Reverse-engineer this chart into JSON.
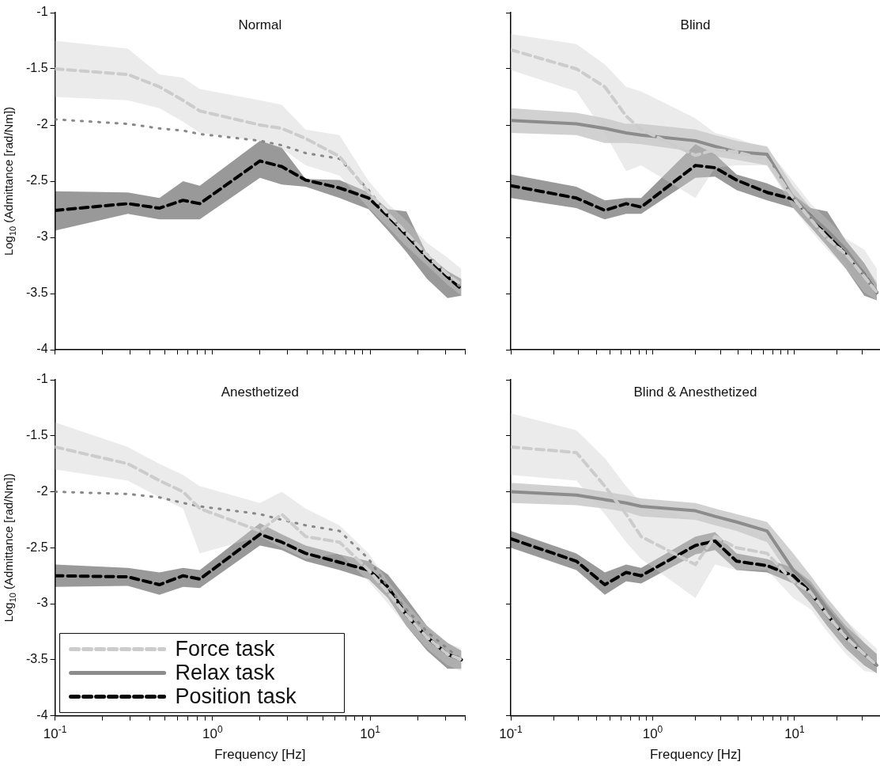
{
  "chart_data": [
    {
      "type": "line",
      "title": "Normal",
      "ylabel": "Log$_{10}$ (Admittance [rad/Nm])",
      "log": "x",
      "tick_labels": "y",
      "legend": false,
      "x": [
        0.1,
        0.29,
        0.46,
        0.65,
        0.83,
        2,
        2.75,
        3.9,
        6.4,
        9.8,
        13,
        17,
        23,
        31,
        38
      ],
      "xlim": [
        0.1,
        40
      ],
      "ylim": [
        -4,
        -1
      ],
      "xticks": [
        {
          "value": 0.1,
          "label": null
        },
        {
          "value": 0.2,
          "label": null
        },
        {
          "value": 0.3,
          "label": null
        },
        {
          "value": 0.4,
          "label": null
        },
        {
          "value": 0.5,
          "label": null
        },
        {
          "value": 0.6,
          "label": null
        },
        {
          "value": 0.7,
          "label": null
        },
        {
          "value": 0.8,
          "label": null
        },
        {
          "value": 0.9,
          "label": null
        },
        {
          "value": 1,
          "label": null
        },
        {
          "value": 2,
          "label": null
        },
        {
          "value": 3,
          "label": null
        },
        {
          "value": 4,
          "label": null
        },
        {
          "value": 5,
          "label": null
        },
        {
          "value": 6,
          "label": null
        },
        {
          "value": 7,
          "label": null
        },
        {
          "value": 8,
          "label": null
        },
        {
          "value": 9,
          "label": null
        },
        {
          "value": 10,
          "label": null
        },
        {
          "value": 20,
          "label": null
        },
        {
          "value": 30,
          "label": null
        },
        {
          "value": 40,
          "label": null
        }
      ],
      "yticks": [
        -4,
        -3.5,
        -3,
        -2.5,
        -2,
        -1.5,
        -1
      ],
      "series": [
        {
          "color": "#cccccc",
          "line_style": "dashed",
          "values": [
            -1.5,
            -1.55,
            -1.66,
            -1.78,
            -1.875,
            -2.0,
            -2.03,
            -2.12,
            -2.28,
            -2.6,
            -2.79,
            -2.96,
            -3.16,
            -3.33,
            -3.42
          ],
          "upper": [
            -1.25,
            -1.32,
            -1.55,
            -1.58,
            -1.68,
            -1.78,
            -1.82,
            -2.04,
            -2.09,
            -2.5,
            -2.7,
            -2.85,
            -3.05,
            -3.18,
            -3.28
          ],
          "lower": [
            -1.75,
            -1.78,
            -1.85,
            -1.97,
            -2.07,
            -2.14,
            -2.21,
            -2.36,
            -2.45,
            -2.74,
            -2.91,
            -3.08,
            -3.25,
            -3.42,
            -3.52
          ]
        },
        {
          "color": "#888888",
          "line_style": "dotted",
          "values": [
            -1.95,
            -1.99,
            -2.03,
            -2.05,
            -2.08,
            -2.14,
            -2.18,
            -2.25,
            -2.3,
            -2.58,
            -2.8,
            -2.97,
            -3.15,
            -3.33,
            -3.45
          ]
        },
        {
          "color": "#000000",
          "line_style": "dashed",
          "values": [
            -2.76,
            -2.7,
            -2.74,
            -2.67,
            -2.7,
            -2.32,
            -2.37,
            -2.49,
            -2.56,
            -2.65,
            -2.81,
            -2.98,
            -3.18,
            -3.35,
            -3.46
          ],
          "upper": [
            -2.59,
            -2.6,
            -2.65,
            -2.5,
            -2.54,
            -2.14,
            -2.2,
            -2.48,
            -2.49,
            -2.6,
            -2.75,
            -2.77,
            -3.15,
            -3.3,
            -3.37
          ],
          "lower": [
            -2.94,
            -2.79,
            -2.84,
            -2.84,
            -2.84,
            -2.47,
            -2.53,
            -2.55,
            -2.65,
            -2.75,
            -2.94,
            -3.13,
            -3.37,
            -3.54,
            -3.52
          ]
        }
      ]
    },
    {
      "type": "line",
      "title": "Blind",
      "log": "x",
      "tick_labels": false,
      "legend": false,
      "x": [
        0.1,
        0.29,
        0.46,
        0.65,
        0.83,
        2,
        2.75,
        3.9,
        6.4,
        9.8,
        13,
        17,
        23,
        31,
        38
      ],
      "xlim": [
        0.1,
        40
      ],
      "ylim": [
        -4,
        -1
      ],
      "xticks": [
        {
          "value": 0.1,
          "label": null
        },
        {
          "value": 0.2,
          "label": null
        },
        {
          "value": 0.3,
          "label": null
        },
        {
          "value": 0.4,
          "label": null
        },
        {
          "value": 0.5,
          "label": null
        },
        {
          "value": 0.6,
          "label": null
        },
        {
          "value": 0.7,
          "label": null
        },
        {
          "value": 0.8,
          "label": null
        },
        {
          "value": 0.9,
          "label": null
        },
        {
          "value": 1,
          "label": null
        },
        {
          "value": 2,
          "label": null
        },
        {
          "value": 3,
          "label": null
        },
        {
          "value": 4,
          "label": null
        },
        {
          "value": 5,
          "label": null
        },
        {
          "value": 6,
          "label": null
        },
        {
          "value": 7,
          "label": null
        },
        {
          "value": 8,
          "label": null
        },
        {
          "value": 9,
          "label": null
        },
        {
          "value": 10,
          "label": null
        },
        {
          "value": 20,
          "label": null
        },
        {
          "value": 30,
          "label": null
        },
        {
          "value": 40,
          "label": null
        }
      ],
      "yticks": [
        {
          "value": -4,
          "label": null
        },
        {
          "value": -3.5,
          "label": null
        },
        {
          "value": -3,
          "label": null
        },
        {
          "value": -2.5,
          "label": null
        },
        {
          "value": -2,
          "label": null
        },
        {
          "value": -1.5,
          "label": null
        },
        {
          "value": -1,
          "label": null
        }
      ],
      "series": [
        {
          "color": "#cccccc",
          "line_style": "dashed",
          "values": [
            -1.33,
            -1.5,
            -1.66,
            -1.92,
            -2.04,
            -2.27,
            -2.22,
            -2.24,
            -2.31,
            -2.65,
            -2.84,
            -3.01,
            -3.15,
            -3.35,
            -3.49
          ],
          "upper": [
            -1.19,
            -1.28,
            -1.46,
            -1.66,
            -1.7,
            -1.94,
            -2.07,
            -2.12,
            -2.21,
            -2.5,
            -2.7,
            -2.84,
            -3.01,
            -3.11,
            -3.28
          ],
          "lower": [
            -1.51,
            -1.7,
            -2.07,
            -2.41,
            -2.36,
            -2.65,
            -2.38,
            -2.36,
            -2.36,
            -2.74,
            -2.94,
            -3.11,
            -3.28,
            -3.49,
            -3.56
          ]
        },
        {
          "color": "#8c8c8c",
          "line_style": "solid",
          "values": [
            -1.96,
            -1.99,
            -2.03,
            -2.07,
            -2.09,
            -2.14,
            -2.19,
            -2.24,
            -2.26,
            -2.65,
            -2.81,
            -2.94,
            -3.11,
            -3.33,
            -3.49
          ],
          "upper": [
            -1.85,
            -1.89,
            -1.94,
            -1.99,
            -1.99,
            -2.04,
            -2.09,
            -2.14,
            -2.19,
            -2.55,
            -2.74,
            -2.84,
            -3.03,
            -3.23,
            -3.4
          ],
          "lower": [
            -2.07,
            -2.09,
            -2.16,
            -2.16,
            -2.17,
            -2.24,
            -2.28,
            -2.31,
            -2.36,
            -2.7,
            -2.89,
            -3.03,
            -3.23,
            -3.47,
            -3.56
          ]
        },
        {
          "color": "#000000",
          "line_style": "dashed",
          "values": [
            -2.54,
            -2.65,
            -2.76,
            -2.7,
            -2.73,
            -2.36,
            -2.38,
            -2.49,
            -2.6,
            -2.66,
            -2.81,
            -2.96,
            -3.13,
            -3.33,
            -3.49
          ],
          "upper": [
            -2.44,
            -2.55,
            -2.67,
            -2.65,
            -2.65,
            -2.17,
            -2.26,
            -2.44,
            -2.52,
            -2.62,
            -2.74,
            -2.77,
            -3.03,
            -3.23,
            -3.42
          ],
          "lower": [
            -2.65,
            -2.74,
            -2.84,
            -2.79,
            -2.79,
            -2.47,
            -2.46,
            -2.58,
            -2.67,
            -2.74,
            -2.91,
            -3.08,
            -3.28,
            -3.52,
            -3.56
          ]
        }
      ]
    },
    {
      "type": "line",
      "title": "Anesthetized",
      "xlabel": "Frequency [Hz]",
      "ylabel": "Log$_{10}$ (Admittance [rad/Nm])",
      "log": "x",
      "legend": "bottom left",
      "x": [
        0.1,
        0.29,
        0.46,
        0.65,
        0.83,
        2,
        2.75,
        3.9,
        6.4,
        9.8,
        13,
        17,
        23,
        31,
        38
      ],
      "xlim": [
        0.1,
        40
      ],
      "ylim": [
        -4,
        -1
      ],
      "xticks": [
        {
          "value": 0.1,
          "label": "10$^{-1}$"
        },
        {
          "value": 0.2,
          "label": null
        },
        {
          "value": 0.3,
          "label": null
        },
        {
          "value": 0.4,
          "label": null
        },
        {
          "value": 0.5,
          "label": null
        },
        {
          "value": 0.6,
          "label": null
        },
        {
          "value": 0.7,
          "label": null
        },
        {
          "value": 0.8,
          "label": null
        },
        {
          "value": 0.9,
          "label": null
        },
        {
          "value": 1,
          "label": "10$^{0}$"
        },
        {
          "value": 2,
          "label": null
        },
        {
          "value": 3,
          "label": null
        },
        {
          "value": 4,
          "label": null
        },
        {
          "value": 5,
          "label": null
        },
        {
          "value": 6,
          "label": null
        },
        {
          "value": 7,
          "label": null
        },
        {
          "value": 8,
          "label": null
        },
        {
          "value": 9,
          "label": null
        },
        {
          "value": 10,
          "label": "10$^{1}$"
        },
        {
          "value": 20,
          "label": null
        },
        {
          "value": 30,
          "label": null
        },
        {
          "value": 40,
          "label": null
        }
      ],
      "yticks": [
        -4,
        -3.5,
        -3,
        -2.5,
        -2,
        -1.5,
        -1
      ],
      "series": [
        {
          "name": "Force task",
          "color": "#cccccc",
          "line_style": "dashed",
          "values": [
            -1.6,
            -1.75,
            -1.9,
            -2.0,
            -2.15,
            -2.35,
            -2.2,
            -2.4,
            -2.45,
            -2.7,
            -2.9,
            -3.1,
            -3.3,
            -3.45,
            -3.5
          ],
          "upper": [
            -1.38,
            -1.6,
            -1.75,
            -1.85,
            -1.95,
            -2.1,
            -2.0,
            -2.15,
            -2.3,
            -2.55,
            -2.8,
            -3.0,
            -3.2,
            -3.35,
            -3.4
          ],
          "lower": [
            -1.8,
            -1.9,
            -2.05,
            -2.15,
            -2.55,
            -2.4,
            -2.5,
            -2.6,
            -2.55,
            -2.8,
            -3.0,
            -3.2,
            -3.4,
            -3.55,
            -3.6
          ]
        },
        {
          "name": "Relax task",
          "color": "#8c8c8c",
          "line_style": "solid",
          "values": [
            null,
            null,
            null,
            null,
            null,
            null,
            null,
            null,
            null,
            null,
            null,
            null,
            null,
            null,
            null
          ]
        },
        {
          "color": "#888888",
          "line_style": "dotted",
          "values": [
            -2.0,
            -2.02,
            -2.05,
            -2.1,
            -2.13,
            -2.2,
            -2.25,
            -2.3,
            -2.35,
            -2.6,
            -2.85,
            -3.05,
            -3.25,
            -3.4,
            -3.5
          ]
        },
        {
          "name": "Position task",
          "color": "#000000",
          "line_style": "dashed",
          "values": [
            -2.75,
            -2.76,
            -2.83,
            -2.75,
            -2.78,
            -2.38,
            -2.45,
            -2.55,
            -2.63,
            -2.7,
            -2.85,
            -3.1,
            -3.3,
            -3.45,
            -3.5
          ],
          "upper": [
            -2.65,
            -2.68,
            -2.72,
            -2.68,
            -2.7,
            -2.28,
            -2.38,
            -2.48,
            -2.56,
            -2.62,
            -2.74,
            -2.95,
            -3.2,
            -3.35,
            -3.42
          ],
          "lower": [
            -2.85,
            -2.84,
            -2.92,
            -2.85,
            -2.86,
            -2.48,
            -2.52,
            -2.62,
            -2.7,
            -2.78,
            -2.95,
            -3.2,
            -3.42,
            -3.58,
            -3.58
          ]
        }
      ]
    },
    {
      "type": "line",
      "title": "Blind & Anesthetized",
      "xlabel": "Frequency [Hz]",
      "log": "x",
      "tick_labels": "x",
      "legend": false,
      "x": [
        0.1,
        0.29,
        0.46,
        0.65,
        0.83,
        2,
        2.75,
        3.9,
        6.4,
        9.8,
        13,
        17,
        23,
        31,
        38
      ],
      "xlim": [
        0.1,
        40
      ],
      "ylim": [
        -4,
        -1
      ],
      "xticks": [
        {
          "value": 0.1,
          "label": "10$^{-1}$"
        },
        {
          "value": 0.2,
          "label": null
        },
        {
          "value": 0.3,
          "label": null
        },
        {
          "value": 0.4,
          "label": null
        },
        {
          "value": 0.5,
          "label": null
        },
        {
          "value": 0.6,
          "label": null
        },
        {
          "value": 0.7,
          "label": null
        },
        {
          "value": 0.8,
          "label": null
        },
        {
          "value": 0.9,
          "label": null
        },
        {
          "value": 1,
          "label": "10$^{0}$"
        },
        {
          "value": 2,
          "label": null
        },
        {
          "value": 3,
          "label": null
        },
        {
          "value": 4,
          "label": null
        },
        {
          "value": 5,
          "label": null
        },
        {
          "value": 6,
          "label": null
        },
        {
          "value": 7,
          "label": null
        },
        {
          "value": 8,
          "label": null
        },
        {
          "value": 9,
          "label": null
        },
        {
          "value": 10,
          "label": "10$^{1}$"
        },
        {
          "value": 20,
          "label": null
        },
        {
          "value": 30,
          "label": null
        },
        {
          "value": 40,
          "label": null
        }
      ],
      "yticks": [
        {
          "value": -4,
          "label": null
        },
        {
          "value": -3.5,
          "label": null
        },
        {
          "value": -3,
          "label": null
        },
        {
          "value": -2.5,
          "label": null
        },
        {
          "value": -2,
          "label": null
        },
        {
          "value": -1.5,
          "label": null
        },
        {
          "value": -1,
          "label": null
        }
      ],
      "series": [
        {
          "color": "#cccccc",
          "line_style": "dashed",
          "values": [
            -1.6,
            -1.65,
            -1.95,
            -2.2,
            -2.4,
            -2.65,
            -2.4,
            -2.5,
            -2.55,
            -2.8,
            -2.9,
            -3.1,
            -3.3,
            -3.45,
            -3.55
          ],
          "upper": [
            -1.3,
            -1.45,
            -1.7,
            -1.95,
            -2.1,
            -2.25,
            -2.15,
            -2.3,
            -2.4,
            -2.6,
            -2.75,
            -2.95,
            -3.15,
            -3.3,
            -3.4
          ],
          "lower": [
            -1.85,
            -1.9,
            -2.2,
            -2.45,
            -2.6,
            -2.95,
            -2.65,
            -2.7,
            -2.7,
            -2.95,
            -3.05,
            -3.25,
            -3.45,
            -3.6,
            -3.62
          ]
        },
        {
          "color": "#8c8c8c",
          "line_style": "solid",
          "values": [
            -2.0,
            -2.03,
            -2.07,
            -2.1,
            -2.13,
            -2.17,
            -2.22,
            -2.27,
            -2.35,
            -2.7,
            -2.85,
            -3.05,
            -3.25,
            -3.45,
            -3.55
          ],
          "upper": [
            -1.92,
            -1.96,
            -2.0,
            -2.03,
            -2.06,
            -2.1,
            -2.15,
            -2.2,
            -2.27,
            -2.55,
            -2.75,
            -2.95,
            -3.15,
            -3.35,
            -3.45
          ],
          "lower": [
            -2.1,
            -2.12,
            -2.15,
            -2.18,
            -2.22,
            -2.25,
            -2.3,
            -2.35,
            -2.45,
            -2.8,
            -2.95,
            -3.15,
            -3.35,
            -3.55,
            -3.62
          ]
        },
        {
          "color": "#000000",
          "line_style": "dashed",
          "values": [
            -2.42,
            -2.62,
            -2.83,
            -2.72,
            -2.75,
            -2.48,
            -2.44,
            -2.62,
            -2.66,
            -2.75,
            -2.9,
            -3.1,
            -3.3,
            -3.45,
            -3.55
          ],
          "upper": [
            -2.35,
            -2.55,
            -2.72,
            -2.65,
            -2.68,
            -2.4,
            -2.36,
            -2.55,
            -2.6,
            -2.68,
            -2.8,
            -3.0,
            -3.2,
            -3.35,
            -3.45
          ],
          "lower": [
            -2.5,
            -2.7,
            -2.92,
            -2.8,
            -2.82,
            -2.56,
            -2.52,
            -2.7,
            -2.72,
            -2.82,
            -3.0,
            -3.2,
            -3.4,
            -3.55,
            -3.62
          ]
        }
      ]
    }
  ]
}
